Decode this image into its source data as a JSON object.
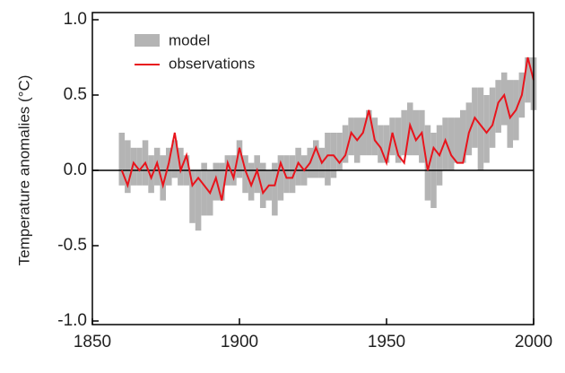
{
  "chart_data": {
    "type": "band-line",
    "y_label": "Temperature anomalies (°C)",
    "x": [
      1860,
      1862,
      1864,
      1866,
      1868,
      1870,
      1872,
      1874,
      1876,
      1878,
      1880,
      1882,
      1884,
      1886,
      1888,
      1890,
      1892,
      1894,
      1896,
      1898,
      1900,
      1902,
      1904,
      1906,
      1908,
      1910,
      1912,
      1914,
      1916,
      1918,
      1920,
      1922,
      1924,
      1926,
      1928,
      1930,
      1932,
      1934,
      1936,
      1938,
      1940,
      1942,
      1944,
      1946,
      1948,
      1950,
      1952,
      1954,
      1956,
      1958,
      1960,
      1962,
      1964,
      1966,
      1968,
      1970,
      1972,
      1974,
      1976,
      1978,
      1980,
      1982,
      1984,
      1986,
      1988,
      1990,
      1992,
      1994,
      1996,
      1998,
      2000
    ],
    "series": [
      {
        "name": "model",
        "color": "#b4b4b4",
        "lower": [
          -0.1,
          -0.15,
          -0.1,
          -0.1,
          -0.1,
          -0.15,
          -0.1,
          -0.2,
          -0.1,
          -0.05,
          -0.1,
          -0.1,
          -0.35,
          -0.4,
          -0.3,
          -0.3,
          -0.2,
          -0.2,
          -0.1,
          -0.1,
          -0.05,
          -0.15,
          -0.2,
          -0.15,
          -0.25,
          -0.2,
          -0.3,
          -0.2,
          -0.15,
          -0.15,
          -0.1,
          -0.1,
          -0.05,
          -0.05,
          -0.05,
          -0.1,
          -0.05,
          0.0,
          0.05,
          0.1,
          0.05,
          0.1,
          0.1,
          0.1,
          0.05,
          0.05,
          0.1,
          0.05,
          0.1,
          0.1,
          0.1,
          0.05,
          -0.2,
          -0.25,
          -0.1,
          0.0,
          0.0,
          0.05,
          0.05,
          0.1,
          0.15,
          0.0,
          0.05,
          0.15,
          0.25,
          0.3,
          0.15,
          0.2,
          0.35,
          0.45,
          0.4
        ],
        "upper": [
          0.25,
          0.2,
          0.15,
          0.15,
          0.2,
          0.1,
          0.15,
          0.1,
          0.15,
          0.2,
          0.15,
          0.1,
          0.0,
          0.0,
          0.05,
          0.0,
          0.05,
          0.05,
          0.1,
          0.1,
          0.2,
          0.1,
          0.05,
          0.1,
          0.05,
          0.0,
          0.05,
          0.1,
          0.1,
          0.1,
          0.15,
          0.1,
          0.15,
          0.2,
          0.15,
          0.25,
          0.25,
          0.25,
          0.3,
          0.35,
          0.35,
          0.35,
          0.4,
          0.35,
          0.3,
          0.3,
          0.35,
          0.35,
          0.4,
          0.45,
          0.4,
          0.4,
          0.3,
          0.25,
          0.3,
          0.35,
          0.35,
          0.35,
          0.4,
          0.45,
          0.55,
          0.55,
          0.5,
          0.55,
          0.6,
          0.65,
          0.6,
          0.6,
          0.65,
          0.75,
          0.75
        ]
      },
      {
        "name": "observations",
        "color": "#e8141c",
        "values": [
          0.0,
          -0.1,
          0.05,
          0.0,
          0.05,
          -0.05,
          0.05,
          -0.1,
          0.05,
          0.25,
          0.0,
          0.1,
          -0.1,
          -0.05,
          -0.1,
          -0.15,
          -0.05,
          -0.2,
          0.05,
          -0.05,
          0.15,
          0.0,
          -0.1,
          0.0,
          -0.15,
          -0.1,
          -0.1,
          0.05,
          -0.05,
          -0.05,
          0.05,
          0.0,
          0.05,
          0.15,
          0.05,
          0.1,
          0.1,
          0.05,
          0.1,
          0.25,
          0.2,
          0.25,
          0.4,
          0.2,
          0.15,
          0.05,
          0.25,
          0.1,
          0.05,
          0.3,
          0.2,
          0.25,
          0.0,
          0.15,
          0.1,
          0.2,
          0.1,
          0.05,
          0.05,
          0.25,
          0.35,
          0.3,
          0.25,
          0.3,
          0.45,
          0.5,
          0.35,
          0.4,
          0.5,
          0.75,
          0.6
        ]
      }
    ],
    "xlim": [
      1850,
      2000
    ],
    "xticks": [
      1850,
      1900,
      1950,
      2000
    ],
    "ylim": [
      -1.0,
      1.0
    ],
    "yticks": [
      {
        "value": -1.0,
        "label": "-1.0"
      },
      {
        "value": -0.5,
        "label": "-0.5"
      },
      {
        "value": 0.0,
        "label": "0.0"
      },
      {
        "value": 0.5,
        "label": "0.5"
      },
      {
        "value": 1.0,
        "label": "1.0"
      }
    ],
    "legend": "upper left"
  }
}
